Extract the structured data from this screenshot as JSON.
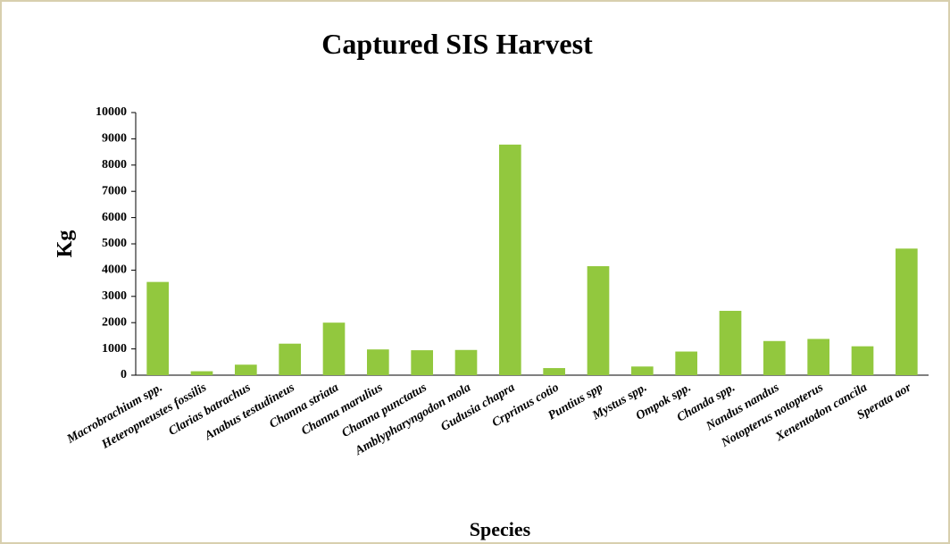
{
  "chart_data": {
    "type": "bar",
    "title": "Captured SIS Harvest",
    "x_label": "Species",
    "y_label": "Kg",
    "categories": [
      "Macrobrachium spp.",
      "Heteropneustes fossilis",
      "Clarias batrachus",
      "Anabus testudineus",
      "Channa striata",
      "Channa marulius",
      "Channa punctatus",
      "Amblypharyngodon mola",
      "Gudusia chapra",
      "Crprinus cotio",
      "Puntius spp",
      "Mystus spp.",
      "Ompok spp.",
      "Chanda spp.",
      "Nandus nandus",
      "Notopterus notopterus",
      "Xenentodon cancila",
      "Sperata aor"
    ],
    "values": [
      3550,
      150,
      400,
      1200,
      2000,
      980,
      950,
      960,
      8780,
      270,
      4150,
      330,
      900,
      2450,
      1300,
      1380,
      1100,
      4820
    ],
    "color": "#92c83e",
    "ylim": [
      0,
      10000
    ],
    "yticks": [
      0,
      1000,
      2000,
      3000,
      4000,
      5000,
      6000,
      7000,
      8000,
      9000,
      10000
    ],
    "grid": false
  }
}
